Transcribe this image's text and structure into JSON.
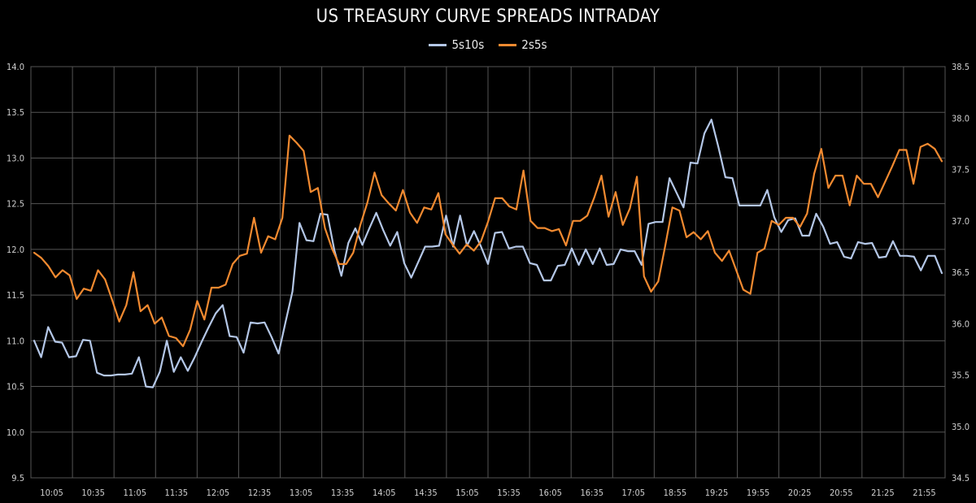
{
  "chart_data": {
    "type": "line",
    "title": "US TREASURY CURVE SPREADS INTRADAY",
    "legend_position": "top-center",
    "grid": true,
    "x_ticks": [
      "10:05",
      "10:35",
      "11:05",
      "11:35",
      "12:05",
      "12:35",
      "13:05",
      "13:35",
      "14:05",
      "14:35",
      "15:05",
      "15:35",
      "16:05",
      "16:35",
      "17:05",
      "18:55",
      "19:25",
      "19:55",
      "20:25",
      "20:55",
      "21:25",
      "21:55"
    ],
    "y_left": {
      "lim": [
        9.5,
        14.0
      ],
      "ticks": [
        "9.5",
        "10.0",
        "10.5",
        "11.0",
        "11.5",
        "12.0",
        "12.5",
        "13.0",
        "13.5",
        "14.0"
      ]
    },
    "y_right": {
      "lim": [
        34.5,
        38.5
      ],
      "ticks": [
        "34.5",
        "35.0",
        "35.5",
        "36.0",
        "36.5",
        "37.0",
        "37.5",
        "38.0",
        "38.5"
      ]
    },
    "series": [
      {
        "name": "5s10s",
        "axis": "left",
        "color": "#b4c7e7",
        "values": [
          11.0,
          10.82,
          11.15,
          10.99,
          10.98,
          10.82,
          10.83,
          11.01,
          11.0,
          10.65,
          10.62,
          10.62,
          10.63,
          10.63,
          10.64,
          10.82,
          10.5,
          10.49,
          10.66,
          11.0,
          10.66,
          10.82,
          10.67,
          10.82,
          10.99,
          11.15,
          11.3,
          11.39,
          11.05,
          11.04,
          10.87,
          11.2,
          11.19,
          11.2,
          11.04,
          10.86,
          11.2,
          11.54,
          12.29,
          12.1,
          12.09,
          12.39,
          12.38,
          11.99,
          11.71,
          12.07,
          12.23,
          12.05,
          12.23,
          12.4,
          12.21,
          12.04,
          12.19,
          11.85,
          11.69,
          11.86,
          12.03,
          12.03,
          12.04,
          12.37,
          12.03,
          12.37,
          12.04,
          12.2,
          12.03,
          11.84,
          12.18,
          12.19,
          12.01,
          12.03,
          12.03,
          11.85,
          11.83,
          11.66,
          11.66,
          11.82,
          11.83,
          12.01,
          11.83,
          12.0,
          11.84,
          12.01,
          11.83,
          11.84,
          12.0,
          11.98,
          11.98,
          11.83,
          12.28,
          12.3,
          12.3,
          12.78,
          12.62,
          12.46,
          12.95,
          12.94,
          13.27,
          13.42,
          13.12,
          12.79,
          12.78,
          12.48,
          12.48,
          12.48,
          12.48,
          12.65,
          12.35,
          12.19,
          12.32,
          12.34,
          12.15,
          12.15,
          12.39,
          12.25,
          12.06,
          12.08,
          11.92,
          11.9,
          12.08,
          12.06,
          12.07,
          11.91,
          11.92,
          12.09,
          11.93,
          11.93,
          11.92,
          11.77,
          11.93,
          11.93,
          11.74
        ]
      },
      {
        "name": "2s5s",
        "axis": "right",
        "color": "#f28a30",
        "values": [
          36.69,
          36.64,
          36.56,
          36.45,
          36.52,
          36.47,
          36.24,
          36.34,
          36.32,
          36.52,
          36.43,
          36.23,
          36.02,
          36.18,
          36.5,
          36.12,
          36.18,
          36.0,
          36.06,
          35.88,
          35.86,
          35.78,
          35.94,
          36.22,
          36.04,
          36.35,
          36.35,
          36.38,
          36.58,
          36.66,
          36.68,
          37.03,
          36.69,
          36.85,
          36.82,
          37.03,
          37.83,
          37.76,
          37.68,
          37.28,
          37.32,
          36.93,
          36.73,
          36.58,
          36.58,
          36.69,
          36.96,
          37.18,
          37.47,
          37.25,
          37.17,
          37.1,
          37.3,
          37.08,
          36.98,
          37.13,
          37.11,
          37.27,
          36.87,
          36.77,
          36.68,
          36.77,
          36.71,
          36.8,
          36.99,
          37.22,
          37.22,
          37.14,
          37.11,
          37.49,
          37.0,
          36.93,
          36.93,
          36.9,
          36.92,
          36.76,
          37.0,
          37.0,
          37.05,
          37.23,
          37.44,
          37.04,
          37.28,
          36.96,
          37.12,
          37.43,
          36.46,
          36.31,
          36.41,
          36.76,
          37.13,
          37.1,
          36.84,
          36.89,
          36.82,
          36.9,
          36.69,
          36.61,
          36.71,
          36.52,
          36.33,
          36.29,
          36.69,
          36.73,
          37.0,
          36.96,
          37.03,
          37.03,
          36.94,
          37.07,
          37.46,
          37.7,
          37.32,
          37.44,
          37.44,
          37.15,
          37.44,
          37.36,
          37.36,
          37.23,
          37.38,
          37.53,
          37.69,
          37.69,
          37.36,
          37.72,
          37.75,
          37.7,
          37.58
        ]
      }
    ]
  }
}
